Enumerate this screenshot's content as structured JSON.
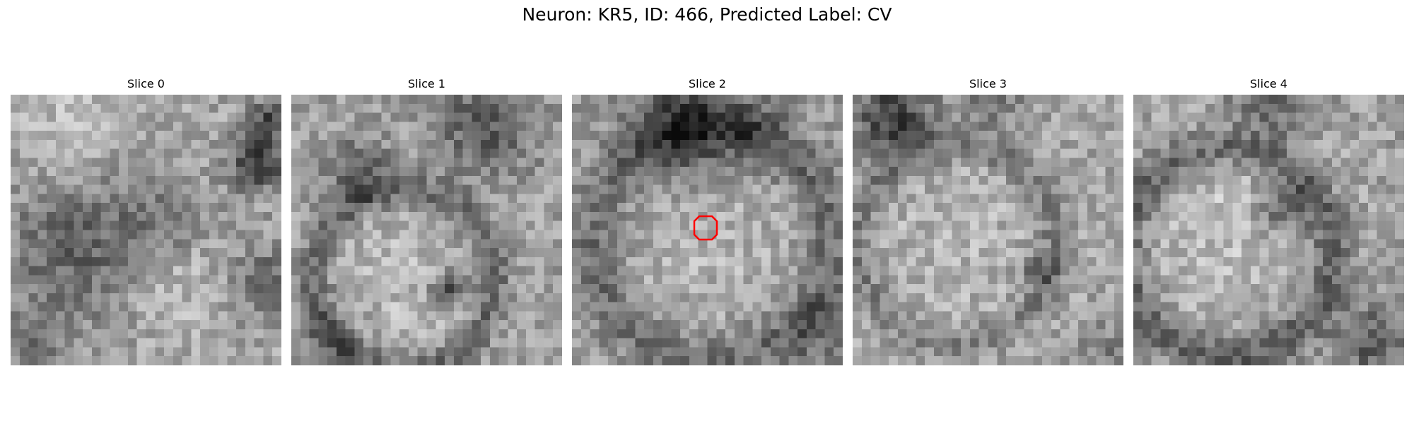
{
  "figure": {
    "title": "Neuron: KR5, ID: 466, Predicted Label: CV"
  },
  "panels": [
    {
      "label": "Slice 0"
    },
    {
      "label": "Slice 1"
    },
    {
      "label": "Slice 2"
    },
    {
      "label": "Slice 3"
    },
    {
      "label": "Slice 4"
    }
  ],
  "colors": {
    "background": "#ffffff",
    "roi_outline": "#ff0000",
    "colormap": "gray"
  }
}
